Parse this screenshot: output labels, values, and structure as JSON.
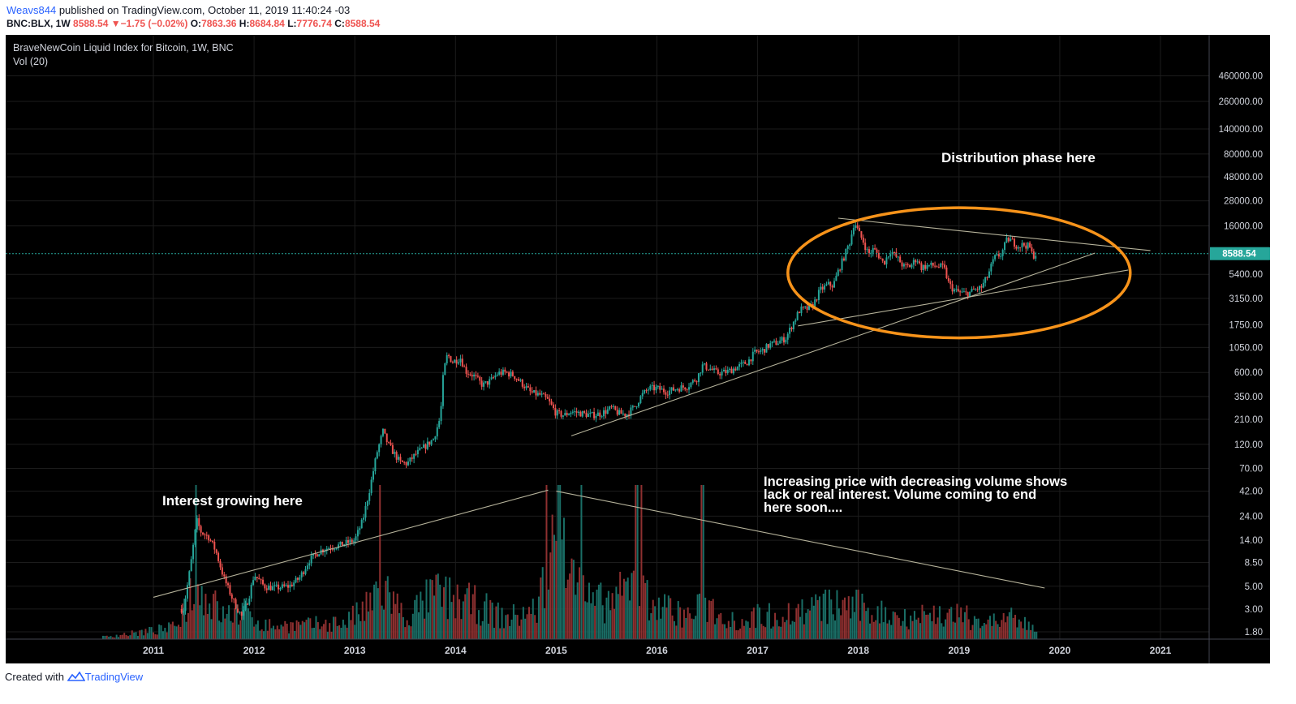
{
  "header": {
    "user": "Weavs844",
    "published": "published on TradingView.com, October 11, 2019 11:40:24 -03",
    "symbol": "BNC:BLX, 1W",
    "last": "8588.54",
    "change_arrow": "▼",
    "change": "−1.75 (−0.02%)",
    "o_label": "O:",
    "o": "7863.36",
    "h_label": "H:",
    "h": "8684.84",
    "l_label": "L:",
    "l": "7776.74",
    "c_label": "C:",
    "c": "8588.54"
  },
  "legend": {
    "title": "BraveNewCoin Liquid Index for Bitcoin, 1W, BNC",
    "vol": "Vol (20)"
  },
  "annotations": {
    "distribution": "Distribution phase here",
    "interest": "Interest growing here",
    "volume_note": [
      "Increasing price with decreasing volume shows",
      "lack or real interest.   Volume coming to end",
      "here soon...."
    ]
  },
  "footer": {
    "created": "Created with",
    "brand": "TradingView"
  },
  "colors": {
    "background": "#000000",
    "up": "#26a69a",
    "down": "#ef5350",
    "up_vol": "#1a6e66",
    "down_vol": "#8e3030",
    "ellipse": "#f7931a",
    "trendline": "#b5b29a",
    "last_price_tag": "#26a69a",
    "axis_text": "#d1d4dc"
  },
  "chart_data": {
    "type": "candlestick",
    "scale": "log",
    "title": "BraveNewCoin Liquid Index for Bitcoin, 1W, BNC",
    "last_price": 8588.54,
    "y_ticks": [
      "460000.00",
      "260000.00",
      "140000.00",
      "80000.00",
      "48000.00",
      "28000.00",
      "16000.00",
      "8588.54",
      "5400.00",
      "3150.00",
      "1750.00",
      "1050.00",
      "600.00",
      "350.00",
      "210.00",
      "120.00",
      "70.00",
      "42.00",
      "24.00",
      "14.00",
      "8.50",
      "5.00",
      "3.00",
      "1.80"
    ],
    "y_tick_values": [
      460000,
      260000,
      140000,
      80000,
      48000,
      28000,
      16000,
      5400,
      3150,
      1750,
      1050,
      600,
      350,
      210,
      120,
      70,
      42,
      24,
      14,
      8.5,
      5,
      3,
      1.8
    ],
    "x_ticks": [
      "2011",
      "2012",
      "2013",
      "2014",
      "2015",
      "2016",
      "2017",
      "2018",
      "2019",
      "2020",
      "2021"
    ],
    "x_tick_years": [
      2011,
      2012,
      2013,
      2014,
      2015,
      2016,
      2017,
      2018,
      2019,
      2020,
      2021
    ],
    "price_points": [
      [
        2011.3,
        3.0
      ],
      [
        2011.37,
        8
      ],
      [
        2011.43,
        22
      ],
      [
        2011.47,
        17
      ],
      [
        2011.55,
        15
      ],
      [
        2011.62,
        11
      ],
      [
        2011.7,
        6
      ],
      [
        2011.8,
        3.5
      ],
      [
        2011.88,
        2.5
      ],
      [
        2011.95,
        4
      ],
      [
        2012.0,
        6.5
      ],
      [
        2012.1,
        5
      ],
      [
        2012.2,
        4.8
      ],
      [
        2012.35,
        5
      ],
      [
        2012.45,
        6
      ],
      [
        2012.55,
        9
      ],
      [
        2012.65,
        11
      ],
      [
        2012.75,
        12
      ],
      [
        2012.85,
        12.5
      ],
      [
        2012.95,
        13.5
      ],
      [
        2013.0,
        14
      ],
      [
        2013.08,
        22
      ],
      [
        2013.15,
        45
      ],
      [
        2013.22,
        100
      ],
      [
        2013.28,
        160
      ],
      [
        2013.33,
        120
      ],
      [
        2013.4,
        95
      ],
      [
        2013.45,
        80
      ],
      [
        2013.52,
        78
      ],
      [
        2013.6,
        95
      ],
      [
        2013.7,
        115
      ],
      [
        2013.78,
        135
      ],
      [
        2013.85,
        220
      ],
      [
        2013.88,
        600
      ],
      [
        2013.92,
        900
      ],
      [
        2013.97,
        760
      ],
      [
        2014.05,
        830
      ],
      [
        2014.1,
        620
      ],
      [
        2014.18,
        560
      ],
      [
        2014.27,
        450
      ],
      [
        2014.35,
        500
      ],
      [
        2014.42,
        590
      ],
      [
        2014.5,
        600
      ],
      [
        2014.58,
        560
      ],
      [
        2014.65,
        480
      ],
      [
        2014.75,
        380
      ],
      [
        2014.85,
        360
      ],
      [
        2014.92,
        320
      ],
      [
        2015.0,
        240
      ],
      [
        2015.08,
        230
      ],
      [
        2015.15,
        250
      ],
      [
        2015.25,
        240
      ],
      [
        2015.35,
        230
      ],
      [
        2015.45,
        240
      ],
      [
        2015.55,
        270
      ],
      [
        2015.62,
        240
      ],
      [
        2015.7,
        235
      ],
      [
        2015.78,
        280
      ],
      [
        2015.85,
        360
      ],
      [
        2015.92,
        420
      ],
      [
        2016.0,
        420
      ],
      [
        2016.1,
        390
      ],
      [
        2016.2,
        420
      ],
      [
        2016.3,
        440
      ],
      [
        2016.4,
        530
      ],
      [
        2016.45,
        700
      ],
      [
        2016.52,
        660
      ],
      [
        2016.6,
        590
      ],
      [
        2016.7,
        610
      ],
      [
        2016.8,
        680
      ],
      [
        2016.9,
        760
      ],
      [
        2016.97,
        930
      ],
      [
        2017.05,
        980
      ],
      [
        2017.12,
        1120
      ],
      [
        2017.2,
        1180
      ],
      [
        2017.28,
        1300
      ],
      [
        2017.35,
        1800
      ],
      [
        2017.42,
        2450
      ],
      [
        2017.5,
        2500
      ],
      [
        2017.55,
        2700
      ],
      [
        2017.62,
        3800
      ],
      [
        2017.7,
        4300
      ],
      [
        2017.75,
        4200
      ],
      [
        2017.8,
        5800
      ],
      [
        2017.86,
        8100
      ],
      [
        2017.92,
        11500
      ],
      [
        2017.96,
        17800
      ],
      [
        2018.0,
        14000
      ],
      [
        2018.05,
        11200
      ],
      [
        2018.1,
        8500
      ],
      [
        2018.15,
        9500
      ],
      [
        2018.2,
        8300
      ],
      [
        2018.25,
        6900
      ],
      [
        2018.32,
        9200
      ],
      [
        2018.4,
        7500
      ],
      [
        2018.45,
        6400
      ],
      [
        2018.52,
        6500
      ],
      [
        2018.58,
        7800
      ],
      [
        2018.62,
        6300
      ],
      [
        2018.7,
        6600
      ],
      [
        2018.78,
        6500
      ],
      [
        2018.85,
        6300
      ],
      [
        2018.9,
        4300
      ],
      [
        2018.95,
        3800
      ],
      [
        2019.0,
        3600
      ],
      [
        2019.08,
        3500
      ],
      [
        2019.15,
        3800
      ],
      [
        2019.22,
        4000
      ],
      [
        2019.28,
        5100
      ],
      [
        2019.35,
        7800
      ],
      [
        2019.42,
        8500
      ],
      [
        2019.48,
        12000
      ],
      [
        2019.52,
        11500
      ],
      [
        2019.58,
        10200
      ],
      [
        2019.65,
        10500
      ],
      [
        2019.7,
        10000
      ],
      [
        2019.73,
        8200
      ],
      [
        2019.77,
        8588
      ]
    ],
    "volume_shape": [
      [
        2010.5,
        0.02
      ],
      [
        2010.8,
        0.05
      ],
      [
        2011.2,
        0.1
      ],
      [
        2011.4,
        0.45
      ],
      [
        2011.55,
        0.35
      ],
      [
        2011.7,
        0.2
      ],
      [
        2011.9,
        0.25
      ],
      [
        2012.1,
        0.12
      ],
      [
        2012.5,
        0.12
      ],
      [
        2012.9,
        0.15
      ],
      [
        2013.1,
        0.25
      ],
      [
        2013.3,
        0.45
      ],
      [
        2013.5,
        0.18
      ],
      [
        2013.8,
        0.4
      ],
      [
        2013.95,
        0.35
      ],
      [
        2014.2,
        0.3
      ],
      [
        2014.5,
        0.18
      ],
      [
        2014.8,
        0.25
      ],
      [
        2014.95,
        0.7
      ],
      [
        2015.05,
        0.9
      ],
      [
        2015.15,
        0.55
      ],
      [
        2015.35,
        0.3
      ],
      [
        2015.6,
        0.35
      ],
      [
        2015.8,
        0.5
      ],
      [
        2016.0,
        0.3
      ],
      [
        2016.3,
        0.2
      ],
      [
        2016.5,
        0.3
      ],
      [
        2016.8,
        0.15
      ],
      [
        2017.0,
        0.2
      ],
      [
        2017.3,
        0.22
      ],
      [
        2017.6,
        0.28
      ],
      [
        2017.9,
        0.3
      ],
      [
        2018.1,
        0.25
      ],
      [
        2018.4,
        0.2
      ],
      [
        2018.8,
        0.22
      ],
      [
        2019.0,
        0.2
      ],
      [
        2019.3,
        0.15
      ],
      [
        2019.5,
        0.18
      ],
      [
        2019.77,
        0.1
      ]
    ],
    "volume_spike_years": [
      2011.43,
      2013.25,
      2014.9,
      2015.03,
      2015.25,
      2015.8,
      2015.85,
      2016.45
    ],
    "trendlines": [
      {
        "name": "volume-rising-line",
        "from": [
          2011.0,
          3.9
        ],
        "to": [
          2014.92,
          43
        ]
      },
      {
        "name": "volume-falling-line",
        "from": [
          2015.0,
          42
        ],
        "to": [
          2019.85,
          4.8
        ]
      },
      {
        "name": "support-line-long",
        "from": [
          2015.15,
          145
        ],
        "to": [
          2020.35,
          8700
        ]
      },
      {
        "name": "support-line-short",
        "from": [
          2017.4,
          1700
        ],
        "to": [
          2020.68,
          5950
        ]
      },
      {
        "name": "resistance-line",
        "from": [
          2017.8,
          19000
        ],
        "to": [
          2020.9,
          9200
        ]
      }
    ],
    "ellipse": {
      "center_year": 2019.0,
      "center_price": 4900,
      "rx_years": 1.7,
      "ry_price_top": 24000,
      "ry_price_bottom": 1300
    }
  }
}
